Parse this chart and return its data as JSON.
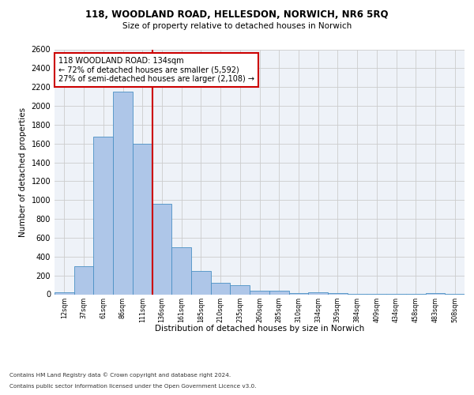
{
  "title_line1": "118, WOODLAND ROAD, HELLESDON, NORWICH, NR6 5RQ",
  "title_line2": "Size of property relative to detached houses in Norwich",
  "xlabel": "Distribution of detached houses by size in Norwich",
  "ylabel": "Number of detached properties",
  "categories": [
    "12sqm",
    "37sqm",
    "61sqm",
    "86sqm",
    "111sqm",
    "136sqm",
    "161sqm",
    "185sqm",
    "210sqm",
    "235sqm",
    "260sqm",
    "285sqm",
    "310sqm",
    "334sqm",
    "359sqm",
    "384sqm",
    "409sqm",
    "434sqm",
    "458sqm",
    "483sqm",
    "508sqm"
  ],
  "values": [
    20,
    300,
    1670,
    2150,
    1600,
    960,
    500,
    245,
    125,
    100,
    40,
    40,
    15,
    20,
    10,
    5,
    5,
    5,
    3,
    10,
    3
  ],
  "bar_color": "#aec6e8",
  "bar_edge_color": "#4a90c4",
  "vline_color": "#cc0000",
  "annotation_text": "118 WOODLAND ROAD: 134sqm\n← 72% of detached houses are smaller (5,592)\n27% of semi-detached houses are larger (2,108) →",
  "annotation_box_color": "#ffffff",
  "annotation_box_edge_color": "#cc0000",
  "ylim": [
    0,
    2600
  ],
  "yticks": [
    0,
    200,
    400,
    600,
    800,
    1000,
    1200,
    1400,
    1600,
    1800,
    2000,
    2200,
    2400,
    2600
  ],
  "grid_color": "#cccccc",
  "background_color": "#eef2f8",
  "footer_line1": "Contains HM Land Registry data © Crown copyright and database right 2024.",
  "footer_line2": "Contains public sector information licensed under the Open Government Licence v3.0."
}
